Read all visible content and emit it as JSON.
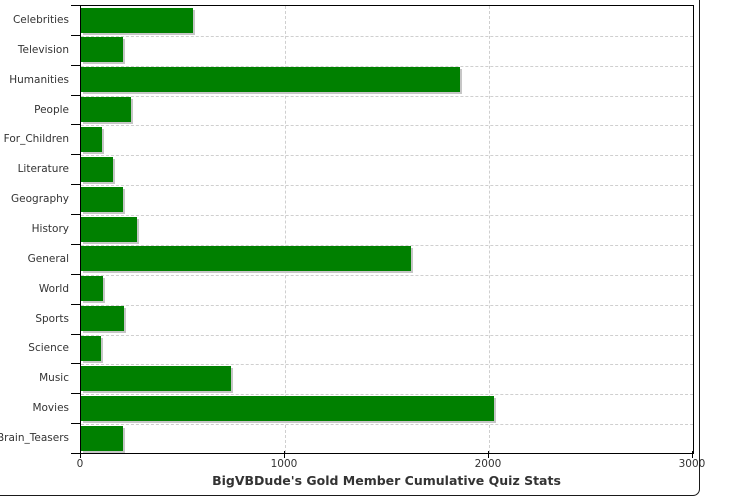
{
  "chart_data": {
    "type": "bar",
    "orientation": "horizontal",
    "title": "BigVBDude's Gold Member Cumulative Quiz Stats",
    "categories": [
      "Celebrities",
      "Television",
      "Humanities",
      "People",
      "For_Children",
      "Literature",
      "Geography",
      "History",
      "General",
      "World",
      "Sports",
      "Science",
      "Music",
      "Movies",
      "Brain_Teasers"
    ],
    "values": [
      550,
      205,
      1860,
      245,
      105,
      155,
      205,
      275,
      1620,
      110,
      210,
      100,
      735,
      2025,
      205
    ],
    "xlabel": "",
    "ylabel": "",
    "xlim": [
      0,
      3000
    ],
    "x_ticks": [
      0,
      1000,
      2000,
      3000
    ],
    "x_tick_labels": [
      "0",
      "1000",
      "2000",
      "3000"
    ],
    "legend_position": "none",
    "grid": "dashed",
    "bar_color": "#008000",
    "shadow_color": "#c6c6c6",
    "grid_color": "#cfcfcf",
    "axis_color": "#000000",
    "text_color": "#333333"
  }
}
